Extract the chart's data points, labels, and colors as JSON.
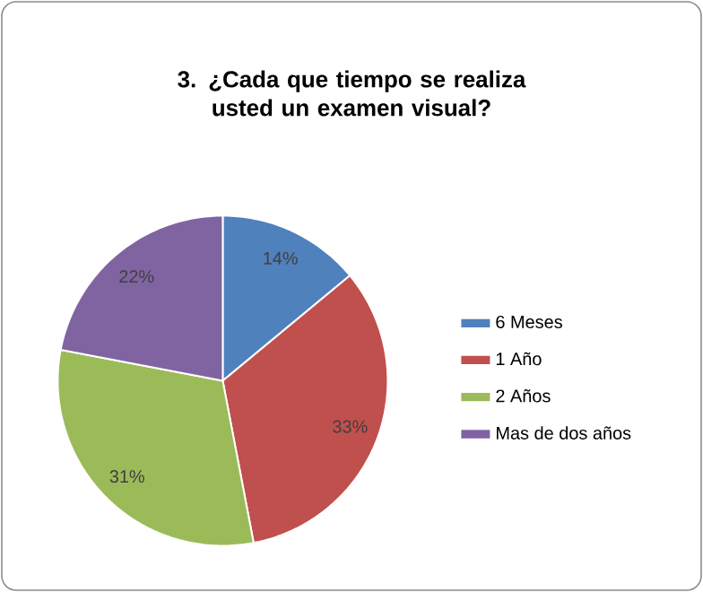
{
  "chart_data": {
    "type": "pie",
    "title": "3.     ¿Cada que tiempo se realiza usted un examen visual?",
    "categories": [
      "6 Meses",
      "1 Año",
      "2 Años",
      "Mas de dos años"
    ],
    "values": [
      14,
      33,
      31,
      22
    ],
    "colors": [
      "#4f81bd",
      "#c0504d",
      "#9bbb59",
      "#8064a2"
    ],
    "value_labels": [
      "14%",
      "33%",
      "31%",
      "22%"
    ],
    "legend": "right"
  }
}
